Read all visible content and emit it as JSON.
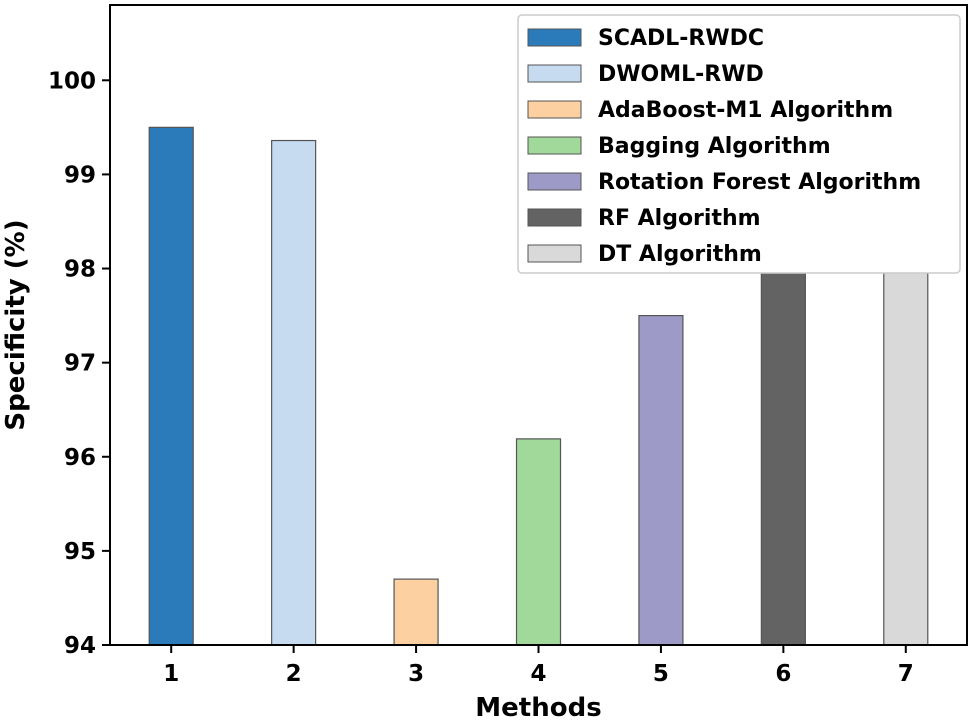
{
  "chart_data": {
    "type": "bar",
    "title": "",
    "xlabel": "Methods",
    "ylabel": "Specificity (%)",
    "ylim": [
      94,
      100.8
    ],
    "yticks": [
      94,
      95,
      96,
      97,
      98,
      99,
      100
    ],
    "grid": false,
    "legend_position": "top-right",
    "categories": [
      "1",
      "2",
      "3",
      "4",
      "5",
      "6",
      "7"
    ],
    "series": [
      {
        "name": "SCADL-RWDC",
        "category": "1",
        "value": 99.5,
        "color": "#2b7bba"
      },
      {
        "name": "DWOML-RWD",
        "category": "2",
        "value": 99.36,
        "color": "#c6dbef"
      },
      {
        "name": "AdaBoost-M1 Algorithm",
        "category": "3",
        "value": 94.7,
        "color": "#fdd0a2"
      },
      {
        "name": "Bagging Algorithm",
        "category": "4",
        "value": 96.19,
        "color": "#a1d99b"
      },
      {
        "name": "Rotation Forest Algorithm",
        "category": "5",
        "value": 97.5,
        "color": "#9e9ac8"
      },
      {
        "name": "RF Algorithm",
        "category": "6",
        "value": 98.59,
        "color": "#636363"
      },
      {
        "name": "DT Algorithm",
        "category": "7",
        "value": 98.23,
        "color": "#d9d9d9"
      }
    ]
  }
}
